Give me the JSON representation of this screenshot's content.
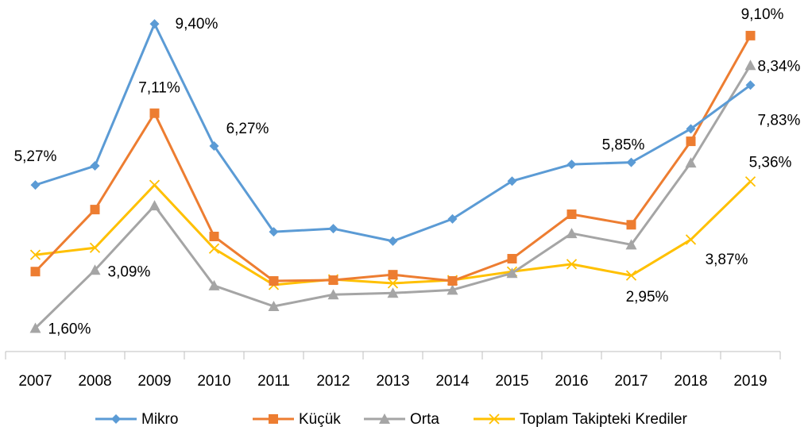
{
  "chart_data": {
    "type": "line",
    "categories": [
      "2007",
      "2008",
      "2009",
      "2010",
      "2011",
      "2012",
      "2013",
      "2014",
      "2015",
      "2016",
      "2017",
      "2018",
      "2019"
    ],
    "ylim": [
      1,
      10
    ],
    "legend": "bottom",
    "series": [
      {
        "name": "Mikro",
        "color": "#5b9bd5",
        "marker": "diamond",
        "values": [
          5.27,
          5.76,
          9.4,
          6.27,
          4.07,
          4.15,
          3.83,
          4.4,
          5.37,
          5.8,
          5.85,
          6.71,
          7.83
        ],
        "value_labels": [
          "5,27%",
          null,
          "9,40%",
          "6,27%",
          null,
          null,
          null,
          null,
          null,
          null,
          "5,85%",
          null,
          "7,83%"
        ]
      },
      {
        "name": "Küçük",
        "color": "#ed7d31",
        "marker": "square",
        "values": [
          3.05,
          4.64,
          7.11,
          3.95,
          2.81,
          2.83,
          2.97,
          2.81,
          3.38,
          4.52,
          4.25,
          6.39,
          9.1
        ],
        "value_labels": [
          null,
          null,
          "7,11%",
          null,
          null,
          null,
          null,
          null,
          null,
          null,
          null,
          null,
          "9,10%"
        ]
      },
      {
        "name": "Orta",
        "color": "#a5a5a5",
        "marker": "triangle",
        "values": [
          1.6,
          3.09,
          4.74,
          2.69,
          2.16,
          2.46,
          2.5,
          2.58,
          3.01,
          4.03,
          3.74,
          5.84,
          8.34
        ],
        "value_labels": [
          "1,60%",
          "3,09%",
          null,
          null,
          null,
          null,
          null,
          null,
          null,
          null,
          null,
          null,
          "8,34%"
        ]
      },
      {
        "name": "Toplam Takipteki Krediler",
        "color": "#ffc000",
        "marker": "x",
        "values": [
          3.48,
          3.66,
          5.27,
          3.64,
          2.71,
          2.85,
          2.75,
          2.83,
          3.05,
          3.24,
          2.95,
          3.87,
          5.36
        ],
        "value_labels": [
          null,
          null,
          null,
          null,
          null,
          null,
          null,
          null,
          null,
          null,
          "2,95%",
          "3,87%",
          "5,36%"
        ]
      }
    ]
  }
}
